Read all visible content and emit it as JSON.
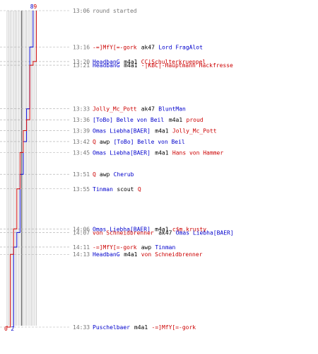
{
  "chart_data": {
    "type": "line",
    "title": "",
    "xlabel": "",
    "ylabel": "",
    "colors": {
      "blue": "#0000cc",
      "red": "#cc0000",
      "grid": "#aaaaaa",
      "median": "#666666",
      "time": "#777777",
      "neutral": "#000000"
    },
    "series": [
      {
        "start_count": 8,
        "end_count": 2,
        "color": "#0000cc"
      },
      {
        "start_count": 9,
        "end_count": 0,
        "color": "#cc0000"
      }
    ],
    "time_range": [
      "13:06",
      "14:33"
    ],
    "events": [
      {
        "time": "13:06",
        "blue": 8,
        "red": 9,
        "parts": [
          {
            "t": "round started",
            "c": "time"
          }
        ]
      },
      {
        "time": "13:16",
        "blue": 7,
        "red": 9,
        "parts": [
          {
            "t": "-=]MfY[=-gork",
            "c": "red"
          },
          {
            "t": "ak47",
            "c": "neutral"
          },
          {
            "t": "Lord FragAlot",
            "c": "blue"
          }
        ]
      },
      {
        "time": "13:20",
        "blue": 7,
        "red": 8,
        "parts": [
          {
            "t": "HeadbanG",
            "c": "blue"
          },
          {
            "t": "m4a1",
            "c": "neutral"
          },
          {
            "t": "CC|Schulterkrueppel",
            "c": "red"
          }
        ]
      },
      {
        "time": "13:21",
        "blue": 7,
        "red": 7,
        "parts": [
          {
            "t": "HeadbanG",
            "c": "blue"
          },
          {
            "t": "m4a1",
            "c": "neutral"
          },
          {
            "t": "-|KBC|-Hauptmann Hackfresse",
            "c": "red"
          }
        ]
      },
      {
        "time": "13:33",
        "blue": 6,
        "red": 7,
        "parts": [
          {
            "t": "Jolly_Mc_Pott",
            "c": "red"
          },
          {
            "t": "ak47",
            "c": "neutral"
          },
          {
            "t": "BluntMan",
            "c": "blue"
          }
        ]
      },
      {
        "time": "13:36",
        "blue": 6,
        "red": 6,
        "parts": [
          {
            "t": "[ToBo] Belle von Beil",
            "c": "blue"
          },
          {
            "t": "m4a1",
            "c": "neutral"
          },
          {
            "t": "proud",
            "c": "red"
          }
        ]
      },
      {
        "time": "13:39",
        "blue": 6,
        "red": 5,
        "parts": [
          {
            "t": "Omas Liebha[BAER]",
            "c": "blue"
          },
          {
            "t": "m4a1",
            "c": "neutral"
          },
          {
            "t": "Jolly_Mc_Pott",
            "c": "red"
          }
        ]
      },
      {
        "time": "13:42",
        "blue": 5,
        "red": 5,
        "parts": [
          {
            "t": "Q",
            "c": "red"
          },
          {
            "t": "awp",
            "c": "neutral"
          },
          {
            "t": "[ToBo] Belle von Beil",
            "c": "blue"
          }
        ]
      },
      {
        "time": "13:45",
        "blue": 5,
        "red": 4,
        "parts": [
          {
            "t": "Omas Liebha[BAER]",
            "c": "blue"
          },
          {
            "t": "m4a1",
            "c": "neutral"
          },
          {
            "t": "Hans von Hammer",
            "c": "red"
          }
        ]
      },
      {
        "time": "13:51",
        "blue": 4,
        "red": 4,
        "parts": [
          {
            "t": "Q",
            "c": "red"
          },
          {
            "t": "awp",
            "c": "neutral"
          },
          {
            "t": "Cherub",
            "c": "blue"
          }
        ]
      },
      {
        "time": "13:55",
        "blue": 4,
        "red": 3,
        "parts": [
          {
            "t": "Tinman",
            "c": "blue"
          },
          {
            "t": "scout",
            "c": "neutral"
          },
          {
            "t": "Q",
            "c": "red"
          }
        ]
      },
      {
        "time": "14:06",
        "blue": 4,
        "red": 2,
        "parts": [
          {
            "t": "Omas Liebha[BAER]",
            "c": "blue"
          },
          {
            "t": "m4a1",
            "c": "neutral"
          },
          {
            "t": "c$m.krusty",
            "c": "red"
          }
        ]
      },
      {
        "time": "14:07",
        "blue": 3,
        "red": 2,
        "parts": [
          {
            "t": "von Schneidbrenner",
            "c": "red"
          },
          {
            "t": "ak47",
            "c": "neutral"
          },
          {
            "t": "Omas Liebha[BAER]",
            "c": "blue"
          }
        ]
      },
      {
        "time": "14:11",
        "blue": 2,
        "red": 2,
        "parts": [
          {
            "t": "-=]MfY[=-gork",
            "c": "red"
          },
          {
            "t": "awp",
            "c": "neutral"
          },
          {
            "t": "Tinman",
            "c": "blue"
          }
        ]
      },
      {
        "time": "14:13",
        "blue": 2,
        "red": 1,
        "parts": [
          {
            "t": "HeadbanG",
            "c": "blue"
          },
          {
            "t": "m4a1",
            "c": "neutral"
          },
          {
            "t": "von Schneidbrenner",
            "c": "red"
          }
        ]
      },
      {
        "time": "14:33",
        "blue": 2,
        "red": 0,
        "parts": [
          {
            "t": "Puschelbaer",
            "c": "blue"
          },
          {
            "t": "m4a1",
            "c": "neutral"
          },
          {
            "t": "-=]MfY[=-gork",
            "c": "red"
          }
        ]
      }
    ]
  }
}
